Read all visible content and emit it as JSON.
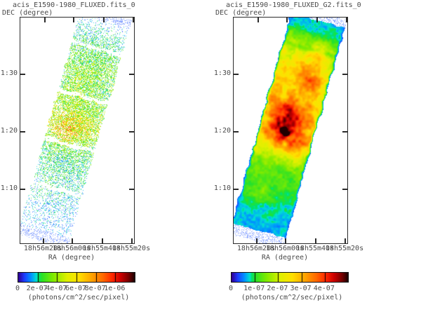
{
  "figure": {
    "background_color": "#ffffff",
    "text_color": "#4a4a4a",
    "axis_color": "#2b2b2b"
  },
  "chart_data": [
    {
      "type": "heatmap",
      "title": "acis_E1590-1980_FLUXED.fits_0",
      "xlabel": "RA (degree)",
      "ylabel": "DEC (degree)",
      "x_tick_labels": [
        "18h56m20s",
        "18h56m00s",
        "18h55m40s",
        "18h55m20s"
      ],
      "y_tick_labels": [
        "1:30",
        "1:20",
        "1:10"
      ],
      "colorbar": {
        "tick_labels": [
          "0",
          "2e-07",
          "4e-07",
          "6e-07",
          "8e-07",
          "1e-06"
        ],
        "unit_label": "(photons/cm^2/sec/pixel)",
        "min": 0,
        "max": 1.2e-06,
        "colors": [
          "#300096",
          "#1e3cff",
          "#0096ff",
          "#00e1d2",
          "#00e16e",
          "#28e128",
          "#82eb00",
          "#e1f000",
          "#ffe100",
          "#ffa500",
          "#ff6900",
          "#ff2800",
          "#cd0000",
          "#780000",
          "#200000"
        ]
      },
      "image_description": "Unsmoothed photon-flux image: a narrow observation strip tilted ~16 deg (top leaning right), rendered as sparse speckled counts; pale blue at both ends, denser blue-cyan-green in the middle, yellow-green peak near RA 18h56m00s / DEC 1:20, with thin white chip-gap lines crossing the strip",
      "peak": {
        "ra": "18h56m00s",
        "dec": "1:20",
        "value": "~5e-07"
      }
    },
    {
      "type": "heatmap",
      "title": "acis_E1590-1980_FLUXED_G2.fits_0",
      "xlabel": "RA (degree)",
      "ylabel": "DEC (degree)",
      "x_tick_labels": [
        "18h56m20s",
        "18h56m00s",
        "18h55m40s",
        "18h55m20s"
      ],
      "y_tick_labels": [
        "1:30",
        "1:20",
        "1:10"
      ],
      "colorbar": {
        "tick_labels": [
          "0",
          "1e-07",
          "2e-07",
          "3e-07",
          "4e-07"
        ],
        "unit_label": "(photons/cm^2/sec/pixel)",
        "min": 0,
        "max": 5e-07,
        "colors": [
          "#300096",
          "#1e3cff",
          "#0096ff",
          "#00e1d2",
          "#00e16e",
          "#28e128",
          "#82eb00",
          "#e1f000",
          "#ffe100",
          "#ffa500",
          "#ff6900",
          "#ff2800",
          "#cd0000",
          "#780000",
          "#200000"
        ]
      },
      "image_description": "Gaussian-smoothed (G2) version of the same strip: continuous blobby rainbow map with thin dark-blue rim, green/yellow interior, large orange-red core around RA 18h56m00s / DEC 1:20 with tiny near-black peak pixels, cyan band and blue ends toward the strip tips",
      "peak": {
        "ra": "18h56m00s",
        "dec": "1:20",
        "value": "~5e-07"
      }
    }
  ]
}
